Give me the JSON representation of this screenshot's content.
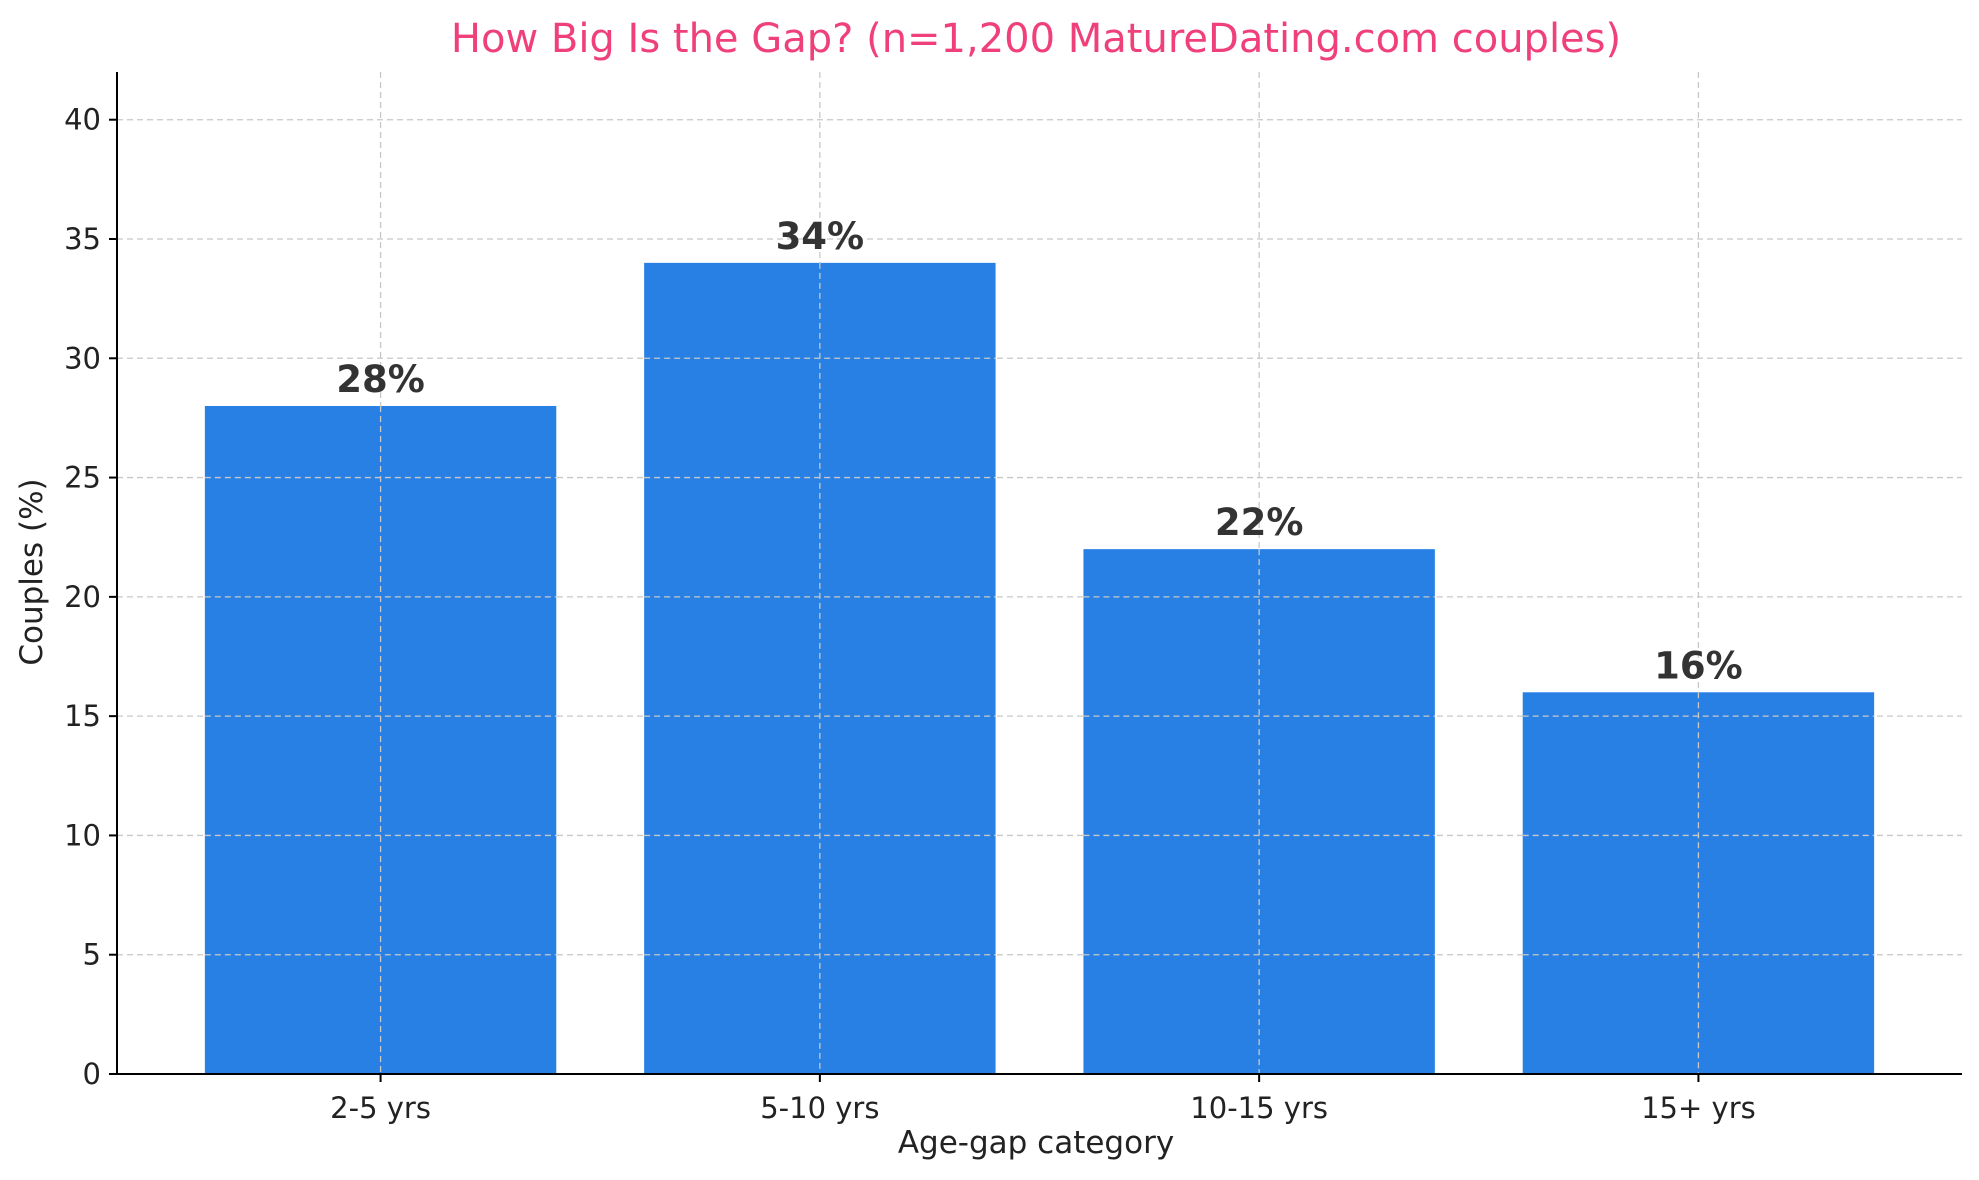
{
  "chart_data": {
    "type": "bar",
    "title": "How Big Is the Gap? (n=1,200 MatureDating.com couples)",
    "xlabel": "Age-gap category",
    "ylabel": "Couples (%)",
    "categories": [
      "2-5 yrs",
      "5-10 yrs",
      "10-15 yrs",
      "15+ yrs"
    ],
    "values": [
      28,
      34,
      22,
      16
    ],
    "data_labels": [
      "28%",
      "34%",
      "22%",
      "16%"
    ],
    "ylim": [
      0,
      42
    ],
    "yticks": [
      0,
      5,
      10,
      15,
      20,
      25,
      30,
      35,
      40
    ],
    "grid": true,
    "colors": {
      "bar": "#2880e4",
      "title": "#f0407a",
      "data_label": "#333333"
    }
  }
}
